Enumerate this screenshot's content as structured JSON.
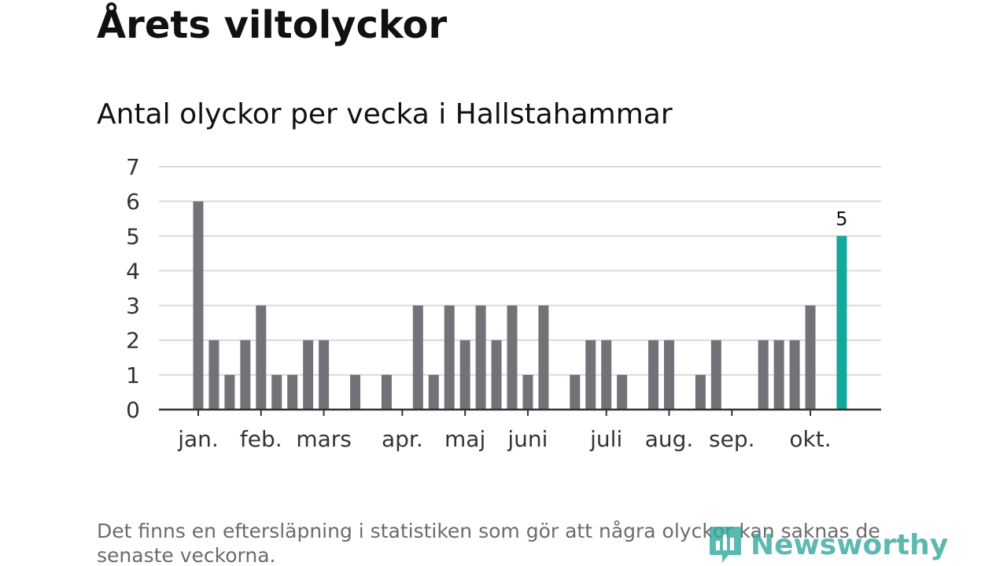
{
  "header": {
    "title": "Årets viltolyckor",
    "subtitle": "Antal olyckor per vecka i Hallstahammar"
  },
  "footer": {
    "note": "Det finns en eftersläpning i statistiken som gör att några olyckor kan saknas de senaste veckorna.",
    "brand": "Newsworthy"
  },
  "colors": {
    "bar": "#737278",
    "highlight": "#12a89a",
    "grid": "#d9d9d9",
    "axis": "#333333",
    "brand": "#34a89f"
  },
  "chart_data": {
    "type": "bar",
    "title": "Antal olyckor per vecka i Hallstahammar",
    "xlabel": "",
    "ylabel": "",
    "ylim": [
      0,
      7
    ],
    "yticks": [
      0,
      1,
      2,
      3,
      4,
      5,
      6,
      7
    ],
    "grid": true,
    "weeks": [
      1,
      2,
      3,
      4,
      5,
      6,
      7,
      8,
      9,
      10,
      11,
      12,
      13,
      14,
      15,
      16,
      17,
      18,
      19,
      20,
      21,
      22,
      23,
      24,
      25,
      26,
      27,
      28,
      29,
      30,
      31,
      32,
      33,
      34,
      35,
      36,
      37,
      38,
      39,
      40,
      41,
      42
    ],
    "values": [
      6,
      2,
      1,
      2,
      3,
      1,
      1,
      2,
      2,
      0,
      1,
      0,
      1,
      0,
      3,
      1,
      3,
      2,
      3,
      2,
      3,
      1,
      3,
      0,
      1,
      2,
      2,
      1,
      0,
      2,
      2,
      0,
      1,
      2,
      0,
      0,
      2,
      2,
      2,
      3,
      0,
      5
    ],
    "highlight_index": 41,
    "highlight_label": "5",
    "month_labels": [
      {
        "label": "jan.",
        "week": 1
      },
      {
        "label": "feb.",
        "week": 5
      },
      {
        "label": "mars",
        "week": 9
      },
      {
        "label": "apr.",
        "week": 14
      },
      {
        "label": "maj",
        "week": 18
      },
      {
        "label": "juni",
        "week": 22
      },
      {
        "label": "juli",
        "week": 27
      },
      {
        "label": "aug.",
        "week": 31
      },
      {
        "label": "sep.",
        "week": 35
      },
      {
        "label": "okt.",
        "week": 40
      }
    ]
  }
}
